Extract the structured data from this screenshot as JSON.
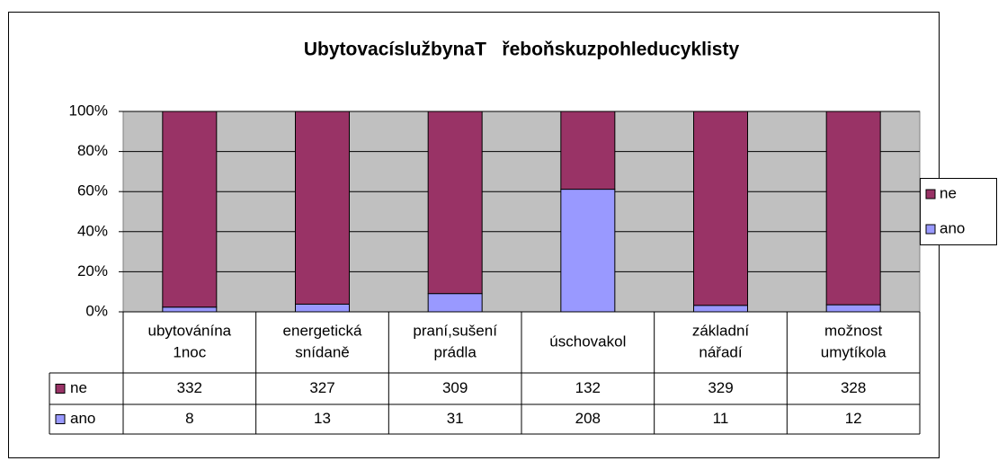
{
  "chart_data": {
    "type": "bar",
    "stacked": "percent",
    "title": "UbytovacíslužbynaT   řeboňskuzpohleducyklisty",
    "categories": [
      [
        "ubytovánína",
        "1noc"
      ],
      [
        "energetická",
        "snídaně"
      ],
      [
        "praní,sušení",
        "prádla"
      ],
      [
        "úschovakol"
      ],
      [
        "základní",
        "nářadí"
      ],
      [
        "možnost",
        "umytíkola"
      ]
    ],
    "series": [
      {
        "name": "ne",
        "color": "#993366",
        "values": [
          332,
          327,
          309,
          132,
          329,
          328
        ]
      },
      {
        "name": "ano",
        "color": "#9999ff",
        "values": [
          8,
          13,
          31,
          208,
          11,
          12
        ]
      }
    ],
    "ylim": [
      0,
      100
    ],
    "yticks": [
      {
        "value": 0,
        "label": "0%"
      },
      {
        "value": 20,
        "label": "20%"
      },
      {
        "value": 40,
        "label": "40%"
      },
      {
        "value": 60,
        "label": "60%"
      },
      {
        "value": 80,
        "label": "80%"
      },
      {
        "value": 100,
        "label": "100%"
      }
    ],
    "grid": true,
    "legend": "right",
    "plot_background": "#c0c0c0",
    "data_table": true
  }
}
